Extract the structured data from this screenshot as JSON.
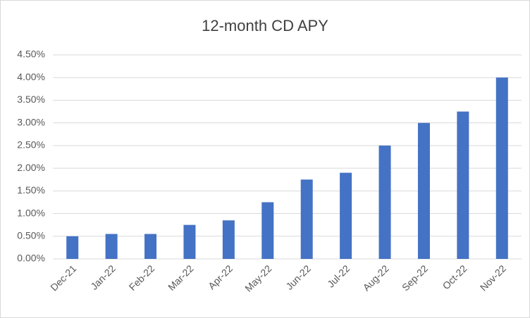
{
  "chart_data": {
    "type": "bar",
    "title": "12-month CD APY",
    "categories": [
      "Dec-21",
      "Jan-22",
      "Feb-22",
      "Mar-22",
      "Apr-22",
      "May-22",
      "Jun-22",
      "Jul-22",
      "Aug-22",
      "Sep-22",
      "Oct-22",
      "Nov-22"
    ],
    "values": [
      0.5,
      0.55,
      0.55,
      0.75,
      0.85,
      1.25,
      1.75,
      1.9,
      2.5,
      3.0,
      3.25,
      4.0
    ],
    "color": "#4472c4",
    "ylim": [
      0,
      4.5
    ],
    "yticks": [
      {
        "value": 0,
        "label": "0.00%"
      },
      {
        "value": 0.5,
        "label": "0.50%"
      },
      {
        "value": 1,
        "label": "1.00%"
      },
      {
        "value": 1.5,
        "label": "1.50%"
      },
      {
        "value": 2,
        "label": "2.00%"
      },
      {
        "value": 2.5,
        "label": "2.50%"
      },
      {
        "value": 3,
        "label": "3.00%"
      },
      {
        "value": 3.5,
        "label": "3.50%"
      },
      {
        "value": 4,
        "label": "4.00%"
      },
      {
        "value": 4.5,
        "label": "4.50%"
      }
    ],
    "grid": true
  }
}
